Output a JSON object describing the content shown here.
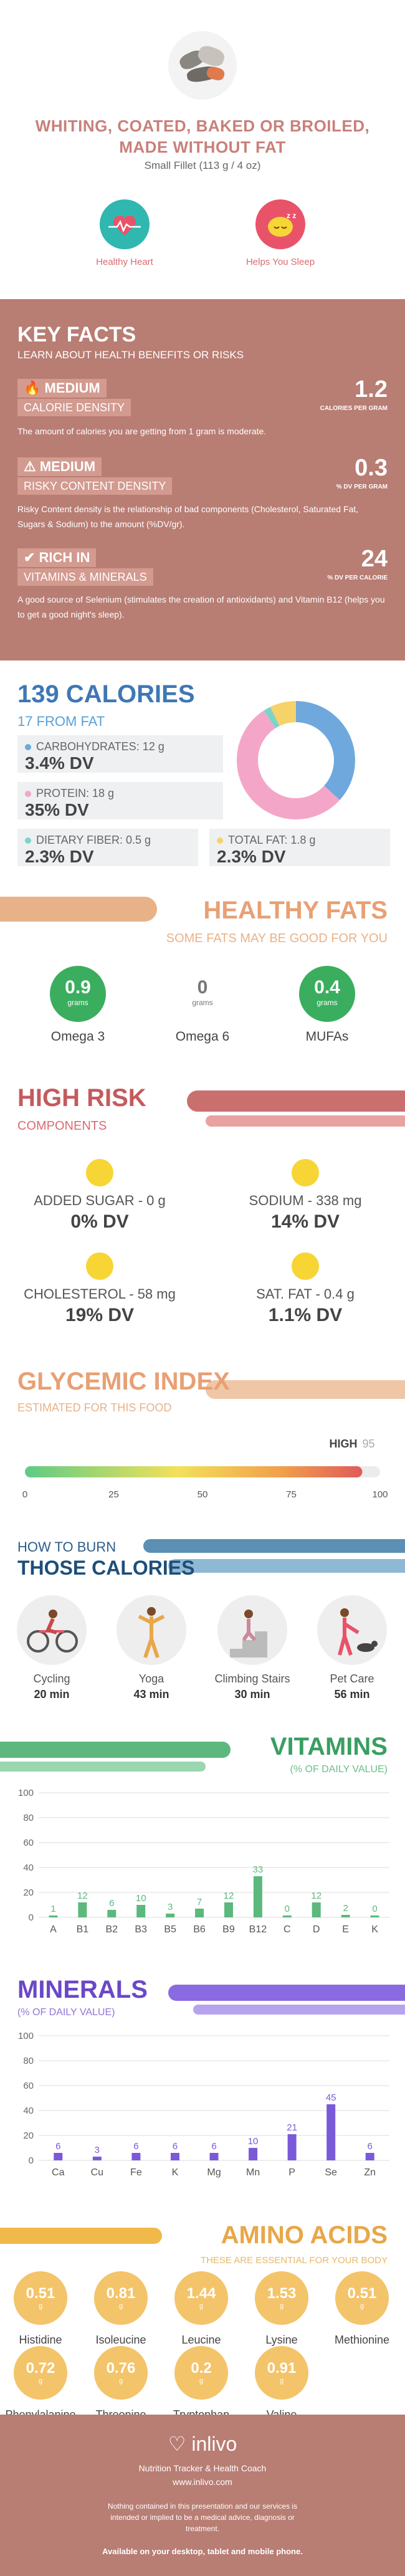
{
  "header": {
    "title": "WHITING, COATED, BAKED OR BROILED, MADE WITHOUT FAT",
    "serving": "Small Fillet (113 g / 4 oz)",
    "benefits": [
      {
        "label": "Healthy Heart",
        "icon": "heart-icon"
      },
      {
        "label": "Helps You Sleep",
        "icon": "sleep-icon"
      }
    ]
  },
  "key_facts": {
    "title": "KEY FACTS",
    "subtitle": "LEARN ABOUT HEALTH BENEFITS OR RISKS",
    "items": [
      {
        "level": "MEDIUM",
        "name": "CALORIE DENSITY",
        "value": "1.2",
        "unit": "CALORIES PER GRAM",
        "desc": "The amount of calories you are getting from 1 gram is moderate."
      },
      {
        "level": "MEDIUM",
        "name": "RISKY CONTENT DENSITY",
        "value": "0.3",
        "unit": "% DV PER GRAM",
        "desc": "Risky Content density is the relationship of bad components (Cholesterol, Saturated Fat, Sugars & Sodium) to the amount (%DV/gr)."
      },
      {
        "level": "RICH  IN",
        "name": "VITAMINS & MINERALS",
        "value": "24",
        "unit": "% DV PER CALORIE",
        "desc": "A good source of Selenium (stimulates the creation of antioxidants) and Vitamin B12 (helps you to get a good night's sleep)."
      }
    ]
  },
  "calories": {
    "title": "139 CALORIES",
    "from_fat": "17 FROM FAT",
    "nutrients": [
      {
        "label": "CARBOHYDRATES: 12 g",
        "dv": "3.4% DV",
        "color": "#6fa8dc"
      },
      {
        "label": "PROTEIN: 18 g",
        "dv": "35% DV",
        "color": "#f4a6c8"
      },
      {
        "label": "DIETARY FIBER: 0.5 g",
        "dv": "2.3% DV",
        "color": "#7fd3c6"
      },
      {
        "label": "TOTAL FAT: 1.8 g",
        "dv": "2.3% DV",
        "color": "#f6d26b"
      }
    ]
  },
  "healthy_fats": {
    "title": "HEALTHY FATS",
    "subtitle": "SOME FATS MAY BE GOOD FOR YOU",
    "unit": "grams",
    "items": [
      {
        "name": "Omega 3",
        "value": "0.9",
        "color": "#3aae5e"
      },
      {
        "name": "Omega 6",
        "value": "0",
        "color": "#ffffff"
      },
      {
        "name": "MUFAs",
        "value": "0.4",
        "color": "#3aae5e"
      }
    ]
  },
  "high_risk": {
    "title": "HIGH RISK",
    "subtitle": "COMPONENTS",
    "items": [
      {
        "label": "ADDED SUGAR - 0 g",
        "dv": "0% DV"
      },
      {
        "label": "SODIUM - 338 mg",
        "dv": "14% DV"
      },
      {
        "label": "CHOLESTEROL - 58 mg",
        "dv": "19% DV"
      },
      {
        "label": "SAT. FAT - 0.4 g",
        "dv": "1.1% DV"
      }
    ]
  },
  "glycemic": {
    "title": "GLYCEMIC INDEX",
    "subtitle": "ESTIMATED FOR THIS FOOD",
    "level": "HIGH",
    "value": 95,
    "value_label": "95",
    "ticks": [
      "0",
      "25",
      "50",
      "75",
      "100"
    ]
  },
  "burn": {
    "title_1": "HOW TO BURN",
    "title_2": "THOSE CALORIES",
    "activities": [
      {
        "name": "Cycling",
        "minutes": "20 min"
      },
      {
        "name": "Yoga",
        "minutes": "43 min"
      },
      {
        "name": "Climbing Stairs",
        "minutes": "30 min"
      },
      {
        "name": "Pet Care",
        "minutes": "56 min"
      }
    ]
  },
  "vitamins": {
    "title": "VITAMINS",
    "subtitle": "(% OF DAILY VALUE)",
    "color": "#5cb87c",
    "chart_data": {
      "type": "bar",
      "categories": [
        "A",
        "B1",
        "B2",
        "B3",
        "B5",
        "B6",
        "B9",
        "B12",
        "C",
        "D",
        "E",
        "K"
      ],
      "values": [
        1,
        12,
        6,
        10,
        3,
        7,
        12,
        33,
        0,
        12,
        2,
        0
      ],
      "value_labels": [
        "1",
        "12",
        "6",
        "10",
        "3",
        "7",
        "12",
        "33",
        "0",
        "12",
        "2",
        "0"
      ],
      "ylim": [
        0,
        100
      ],
      "yticks": [
        "0",
        "20",
        "40",
        "60",
        "80",
        "100"
      ]
    }
  },
  "minerals": {
    "title": "MINERALS",
    "subtitle": "(% OF DAILY VALUE)",
    "color": "#7a5ad9",
    "chart_data": {
      "type": "bar",
      "categories": [
        "Ca",
        "Cu",
        "Fe",
        "K",
        "Mg",
        "Mn",
        "P",
        "Se",
        "Zn"
      ],
      "values": [
        6,
        3,
        6,
        6,
        6,
        10,
        21,
        45,
        6
      ],
      "value_labels": [
        "6",
        "3",
        "6",
        "6",
        "6",
        "10",
        "21",
        "45",
        "6"
      ],
      "ylim": [
        0,
        100
      ],
      "yticks": [
        "0",
        "20",
        "40",
        "60",
        "80",
        "100"
      ]
    }
  },
  "amino_acids": {
    "title": "AMINO ACIDS",
    "subtitle": "THESE ARE ESSENTIAL FOR YOUR BODY",
    "unit": "g",
    "items": [
      {
        "name": "Histidine",
        "value": "0.51"
      },
      {
        "name": "Isoleucine",
        "value": "0.81"
      },
      {
        "name": "Leucine",
        "value": "1.44"
      },
      {
        "name": "Lysine",
        "value": "1.53"
      },
      {
        "name": "Methionine",
        "value": "0.51"
      },
      {
        "name": "Phenylalanine",
        "value": "0.72"
      },
      {
        "name": "Threonine",
        "value": "0.76"
      },
      {
        "name": "Tryptophan",
        "value": "0.2"
      },
      {
        "name": "Valine",
        "value": "0.91"
      }
    ]
  },
  "footer": {
    "logo": "inlivo",
    "tagline": "Nutrition Tracker & Health Coach",
    "url": "www.inlivo.com",
    "disclaimer": "Nothing contained in this presentation and our services is intended or implied to be a medical advice, diagnosis or treatment.",
    "available": "Available on your desktop, tablet and mobile phone."
  }
}
